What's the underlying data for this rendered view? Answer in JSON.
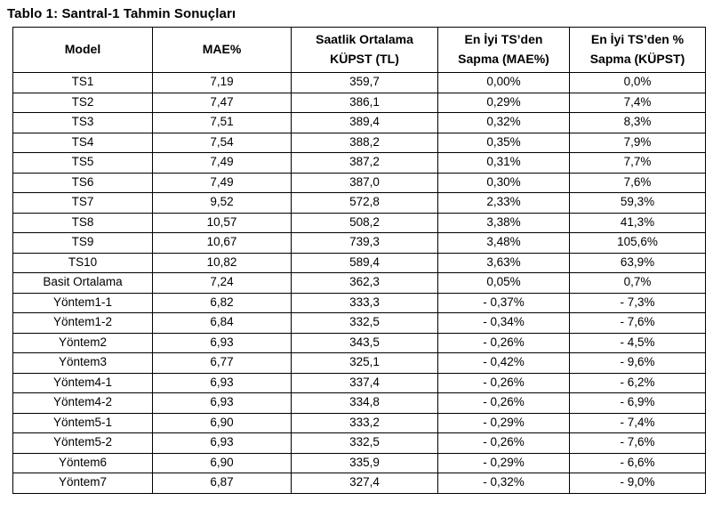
{
  "title": "Tablo 1: Santral-1 Tahmin Sonuçları",
  "table": {
    "headers": [
      "Model",
      "MAE%",
      "Saatlik Ortalama\nKÜPST (TL)",
      "En İyi TS’den\nSapma (MAE%)",
      "En İyi TS’den %\nSapma (KÜPST)"
    ],
    "rows": [
      [
        "TS1",
        "7,19",
        "359,7",
        "0,00%",
        "0,0%"
      ],
      [
        "TS2",
        "7,47",
        "386,1",
        "0,29%",
        "7,4%"
      ],
      [
        "TS3",
        "7,51",
        "389,4",
        "0,32%",
        "8,3%"
      ],
      [
        "TS4",
        "7,54",
        "388,2",
        "0,35%",
        "7,9%"
      ],
      [
        "TS5",
        "7,49",
        "387,2",
        "0,31%",
        "7,7%"
      ],
      [
        "TS6",
        "7,49",
        "387,0",
        "0,30%",
        "7,6%"
      ],
      [
        "TS7",
        "9,52",
        "572,8",
        "2,33%",
        "59,3%"
      ],
      [
        "TS8",
        "10,57",
        "508,2",
        "3,38%",
        "41,3%"
      ],
      [
        "TS9",
        "10,67",
        "739,3",
        "3,48%",
        "105,6%"
      ],
      [
        "TS10",
        "10,82",
        "589,4",
        "3,63%",
        "63,9%"
      ],
      [
        "Basit Ortalama",
        "7,24",
        "362,3",
        "0,05%",
        "0,7%"
      ],
      [
        "Yöntem1-1",
        "6,82",
        "333,3",
        "- 0,37%",
        "- 7,3%"
      ],
      [
        "Yöntem1-2",
        "6,84",
        "332,5",
        "- 0,34%",
        "- 7,6%"
      ],
      [
        "Yöntem2",
        "6,93",
        "343,5",
        "- 0,26%",
        "- 4,5%"
      ],
      [
        "Yöntem3",
        "6,77",
        "325,1",
        "- 0,42%",
        "- 9,6%"
      ],
      [
        "Yöntem4-1",
        "6,93",
        "337,4",
        "- 0,26%",
        "- 6,2%"
      ],
      [
        "Yöntem4-2",
        "6,93",
        "334,8",
        "- 0,26%",
        "- 6,9%"
      ],
      [
        "Yöntem5-1",
        "6,90",
        "333,2",
        "- 0,29%",
        "- 7,4%"
      ],
      [
        "Yöntem5-2",
        "6,93",
        "332,5",
        "- 0,26%",
        "- 7,6%"
      ],
      [
        "Yöntem6",
        "6,90",
        "335,9",
        "- 0,29%",
        "- 6,6%"
      ],
      [
        "Yöntem7",
        "6,87",
        "327,4",
        "- 0,32%",
        "- 9,0%"
      ]
    ],
    "border_color": "#000000",
    "text_color": "#000000",
    "background_color": "#ffffff"
  }
}
